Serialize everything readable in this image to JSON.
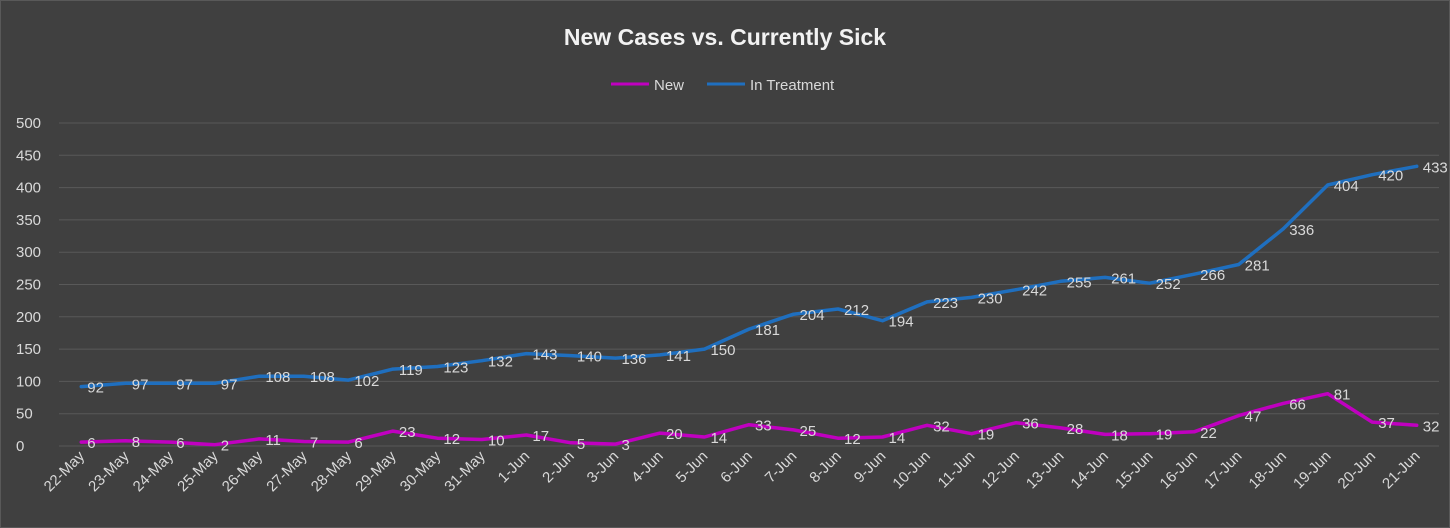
{
  "chart_data": {
    "type": "line",
    "title": "New Cases vs. Currently Sick",
    "xlabel": "",
    "ylabel": "",
    "ylim": [
      0,
      500
    ],
    "yticks": [
      "0",
      "50",
      "100",
      "150",
      "200",
      "250",
      "300",
      "350",
      "400",
      "450",
      "500"
    ],
    "grid": true,
    "legend_position": "top",
    "categories": [
      "22-May",
      "23-May",
      "24-May",
      "25-May",
      "26-May",
      "27-May",
      "28-May",
      "29-May",
      "30-May",
      "31-May",
      "1-Jun",
      "2-Jun",
      "3-Jun",
      "4-Jun",
      "5-Jun",
      "6-Jun",
      "7-Jun",
      "8-Jun",
      "9-Jun",
      "10-Jun",
      "11-Jun",
      "12-Jun",
      "13-Jun",
      "14-Jun",
      "15-Jun",
      "16-Jun",
      "17-Jun",
      "18-Jun",
      "19-Jun",
      "20-Jun",
      "21-Jun"
    ],
    "series": [
      {
        "name": "New",
        "color": "#c000c0",
        "values": [
          6,
          8,
          6,
          2,
          11,
          7,
          6,
          23,
          12,
          10,
          17,
          5,
          3,
          20,
          14,
          33,
          25,
          12,
          14,
          32,
          19,
          36,
          28,
          18,
          19,
          22,
          47,
          66,
          81,
          37,
          32
        ]
      },
      {
        "name": "In Treatment",
        "color": "#1f6fbf",
        "values": [
          92,
          97,
          97,
          97,
          108,
          108,
          102,
          119,
          123,
          132,
          143,
          140,
          136,
          141,
          150,
          181,
          204,
          212,
          194,
          223,
          230,
          242,
          255,
          261,
          252,
          266,
          281,
          336,
          404,
          420,
          433
        ]
      }
    ]
  }
}
